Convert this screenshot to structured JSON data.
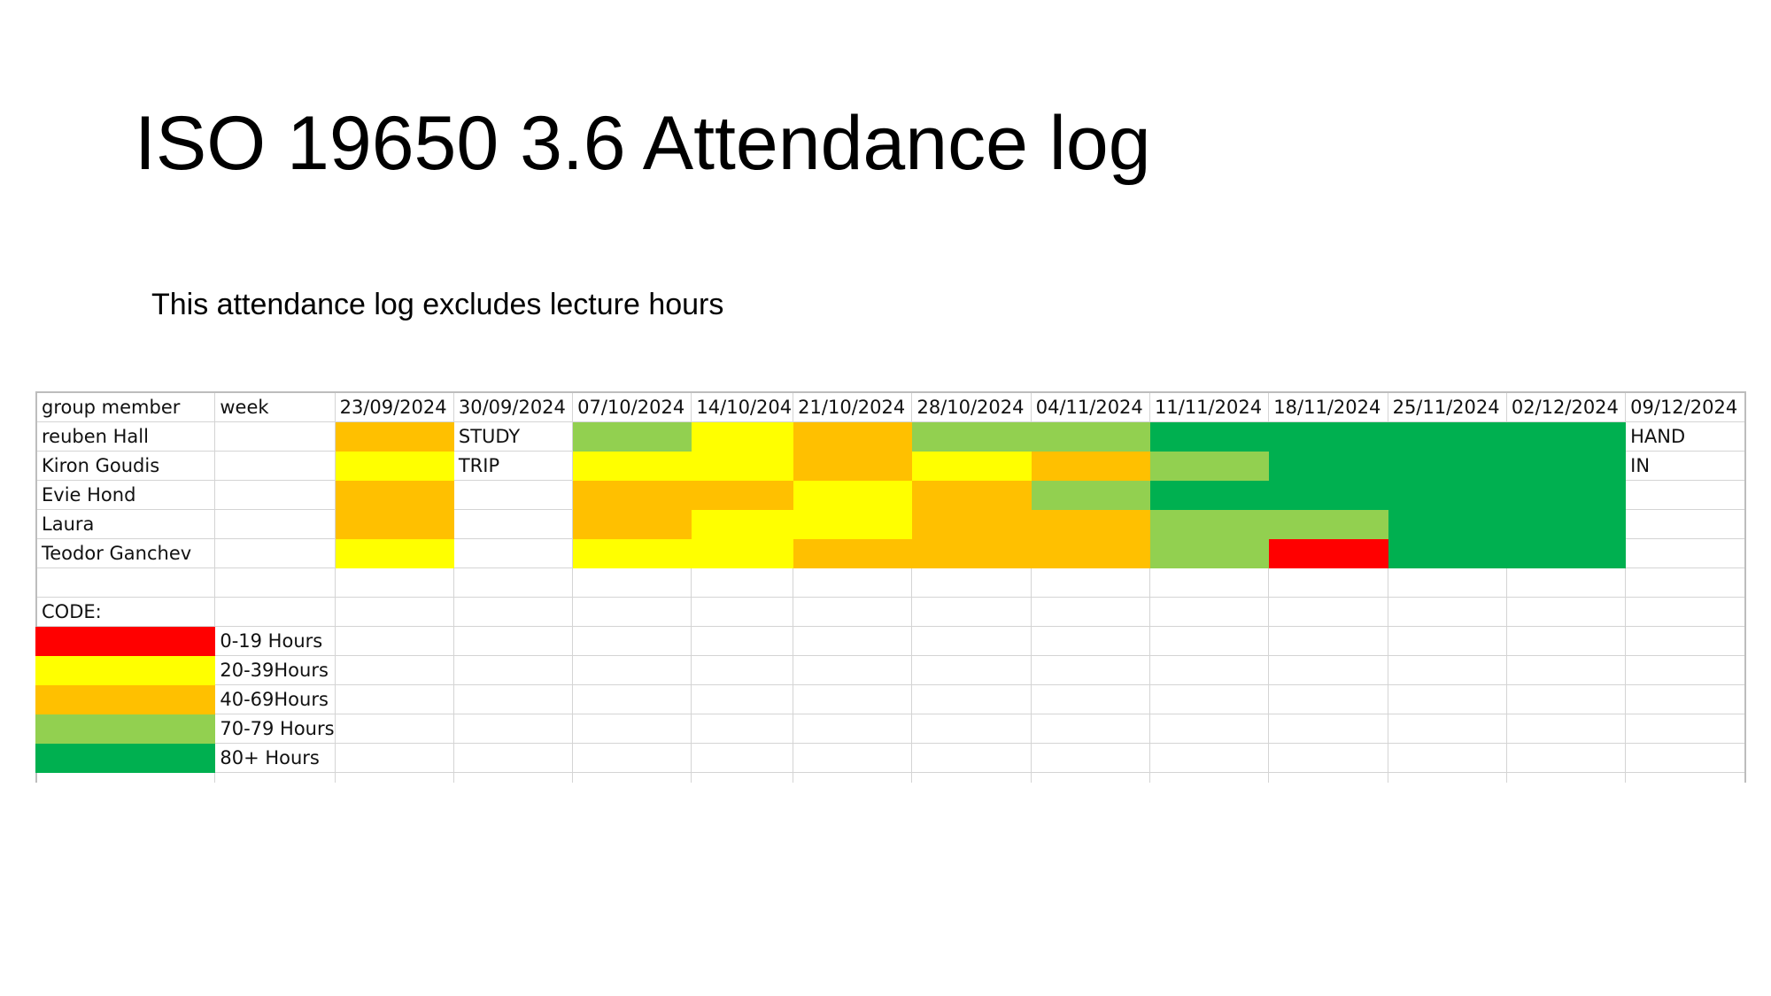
{
  "title": "ISO 19650 3.6 Attendance log",
  "subtitle": "This attendance log excludes lecture hours",
  "colors": {
    "red": "#ff0000",
    "yellow": "#ffff00",
    "orange": "#ffc000",
    "light_green": "#92d050",
    "dark_green": "#00b050"
  },
  "table": {
    "header": {
      "member": "group member",
      "week": "week",
      "dates": [
        "23/09/2024",
        "30/09/2024",
        "07/10/2024",
        "14/10/204",
        "21/10/2024",
        "28/10/2024",
        "04/11/2024",
        "11/11/2024",
        "18/11/2024",
        "25/11/2024",
        "02/12/2024",
        "09/12/2024"
      ]
    },
    "rows": [
      {
        "member": "reuben Hall",
        "cells": [
          {
            "code": "40-69Hours"
          },
          {
            "text": "STUDY"
          },
          {
            "code": "70-79 Hours"
          },
          {
            "code": "20-39Hours"
          },
          {
            "code": "40-69Hours"
          },
          {
            "code": "70-79 Hours"
          },
          {
            "code": "70-79 Hours"
          },
          {
            "code": "80+ Hours"
          },
          {
            "code": "80+ Hours"
          },
          {
            "code": "80+ Hours"
          },
          {
            "code": "80+ Hours"
          },
          {
            "text": "HAND"
          }
        ]
      },
      {
        "member": "Kiron Goudis",
        "cells": [
          {
            "code": "20-39Hours"
          },
          {
            "text": "TRIP"
          },
          {
            "code": "20-39Hours"
          },
          {
            "code": "20-39Hours"
          },
          {
            "code": "40-69Hours"
          },
          {
            "code": "20-39Hours"
          },
          {
            "code": "40-69Hours"
          },
          {
            "code": "70-79 Hours"
          },
          {
            "code": "80+ Hours"
          },
          {
            "code": "80+ Hours"
          },
          {
            "code": "80+ Hours"
          },
          {
            "text": "IN"
          }
        ]
      },
      {
        "member": "Evie Hond",
        "cells": [
          {
            "code": "40-69Hours"
          },
          {},
          {
            "code": "40-69Hours"
          },
          {
            "code": "40-69Hours"
          },
          {
            "code": "20-39Hours"
          },
          {
            "code": "40-69Hours"
          },
          {
            "code": "70-79 Hours"
          },
          {
            "code": "80+ Hours"
          },
          {
            "code": "80+ Hours"
          },
          {
            "code": "80+ Hours"
          },
          {
            "code": "80+ Hours"
          },
          {}
        ]
      },
      {
        "member": "Laura",
        "cells": [
          {
            "code": "40-69Hours"
          },
          {},
          {
            "code": "40-69Hours"
          },
          {
            "code": "20-39Hours"
          },
          {
            "code": "20-39Hours"
          },
          {
            "code": "40-69Hours"
          },
          {
            "code": "40-69Hours"
          },
          {
            "code": "70-79 Hours"
          },
          {
            "code": "70-79 Hours"
          },
          {
            "code": "80+ Hours"
          },
          {
            "code": "80+ Hours"
          },
          {}
        ]
      },
      {
        "member": "Teodor Ganchev",
        "cells": [
          {
            "code": "20-39Hours"
          },
          {},
          {
            "code": "20-39Hours"
          },
          {
            "code": "20-39Hours"
          },
          {
            "code": "40-69Hours"
          },
          {
            "code": "40-69Hours"
          },
          {
            "code": "40-69Hours"
          },
          {
            "code": "70-79 Hours"
          },
          {
            "code": "0-19 Hours"
          },
          {
            "code": "80+ Hours"
          },
          {
            "code": "80+ Hours"
          },
          {}
        ]
      }
    ]
  },
  "legend": {
    "label": "CODE:",
    "items": [
      {
        "label": "0-19 Hours",
        "color": "#ff0000"
      },
      {
        "label": "20-39Hours",
        "color": "#ffff00"
      },
      {
        "label": "40-69Hours",
        "color": "#ffc000"
      },
      {
        "label": "70-79 Hours",
        "color": "#92d050"
      },
      {
        "label": "80+ Hours",
        "color": "#00b050"
      }
    ]
  }
}
